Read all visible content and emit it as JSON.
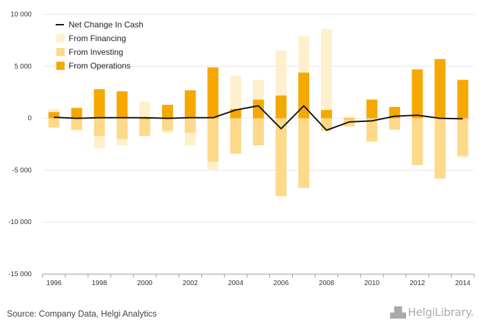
{
  "chart_data": {
    "type": "bar",
    "stacked": true,
    "x": [
      1996,
      1997,
      1998,
      1999,
      2000,
      2001,
      2002,
      2003,
      2004,
      2005,
      2006,
      2007,
      2008,
      2009,
      2010,
      2011,
      2012,
      2013,
      2014
    ],
    "xticklabels": [
      "1996",
      "1998",
      "2000",
      "2002",
      "2004",
      "2006",
      "2008",
      "2010",
      "2012",
      "2014"
    ],
    "yticks": [
      10000,
      5000,
      0,
      -5000,
      -10000,
      -15000
    ],
    "yticklabels": [
      "10 000",
      "5 000",
      "0",
      "-5 000",
      "-10 000",
      "-15 000"
    ],
    "ylim": [
      -15000,
      10000
    ],
    "grid": true,
    "legend_position": "top-left",
    "series": [
      {
        "name": "From Operations",
        "kind": "bar",
        "color": "#f5a800",
        "values": [
          600,
          1000,
          2800,
          2600,
          -100,
          1300,
          2700,
          4900,
          900,
          1800,
          2200,
          4400,
          800,
          -100,
          1800,
          1100,
          4700,
          5700,
          3700
        ]
      },
      {
        "name": "From Investing",
        "kind": "bar",
        "color": "#fdd98a",
        "values": [
          -900,
          -1100,
          -1700,
          -2000,
          -1600,
          -1200,
          -1400,
          -4200,
          -3400,
          -2600,
          -7500,
          -6700,
          -1200,
          -700,
          -2200,
          -1100,
          -4500,
          -5800,
          -3600
        ]
      },
      {
        "name": "From Financing",
        "kind": "bar",
        "color": "#fef0cc",
        "values": [
          300,
          -100,
          -1200,
          -600,
          1600,
          -200,
          -1200,
          -800,
          3200,
          1900,
          4300,
          3500,
          7800,
          200,
          -100,
          0,
          0,
          0,
          -200
        ]
      },
      {
        "name": "Net Change In Cash",
        "kind": "line",
        "color": "#111111",
        "values": [
          100,
          0,
          50,
          50,
          50,
          0,
          50,
          50,
          800,
          1200,
          -1000,
          1200,
          -1150,
          -350,
          -250,
          200,
          300,
          0,
          -50
        ]
      }
    ],
    "legend_order": [
      "Net Change In Cash",
      "From Financing",
      "From Investing",
      "From Operations"
    ]
  },
  "footer": {
    "source": "Source: Company Data, Helgi Analytics",
    "logo_text": "HelgiLibrary."
  }
}
